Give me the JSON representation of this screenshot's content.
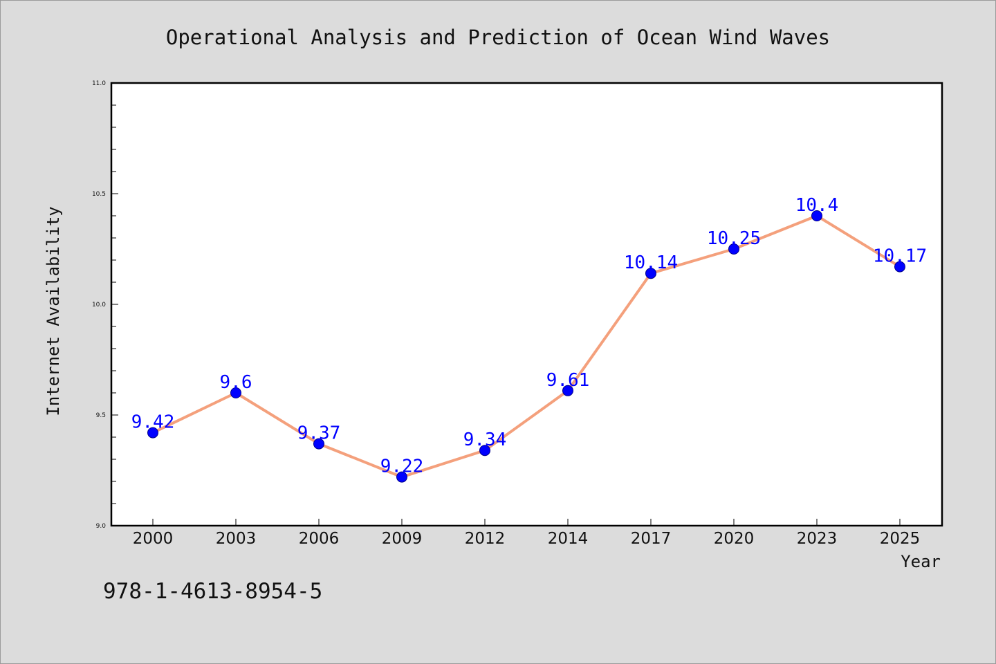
{
  "chart_data": {
    "type": "line",
    "title": "Operational Analysis and Prediction of Ocean Wind Waves",
    "xlabel": "Year",
    "ylabel": "Internet Availability",
    "categories": [
      "2000",
      "2003",
      "2006",
      "2009",
      "2012",
      "2014",
      "2017",
      "2020",
      "2023",
      "2025"
    ],
    "series": [
      {
        "values": [
          9.42,
          9.6,
          9.37,
          9.22,
          9.34,
          9.61,
          10.14,
          10.25,
          10.4,
          10.17
        ],
        "labels": [
          "9.42",
          "9.6",
          "9.37",
          "9.22",
          "9.34",
          "9.61",
          "10.14",
          "10.25",
          "10.4",
          "10.17"
        ],
        "line_color": "#f4a07c",
        "marker_color": "#0000ff",
        "label_color": "#0000ff"
      }
    ],
    "ylim": [
      9.0,
      11.0
    ],
    "yticks": [
      "9.0",
      "9.5",
      "10.0",
      "10.5",
      "11.0"
    ],
    "grid": false,
    "legend": "none"
  },
  "annotation": "978-1-4613-8954-5"
}
